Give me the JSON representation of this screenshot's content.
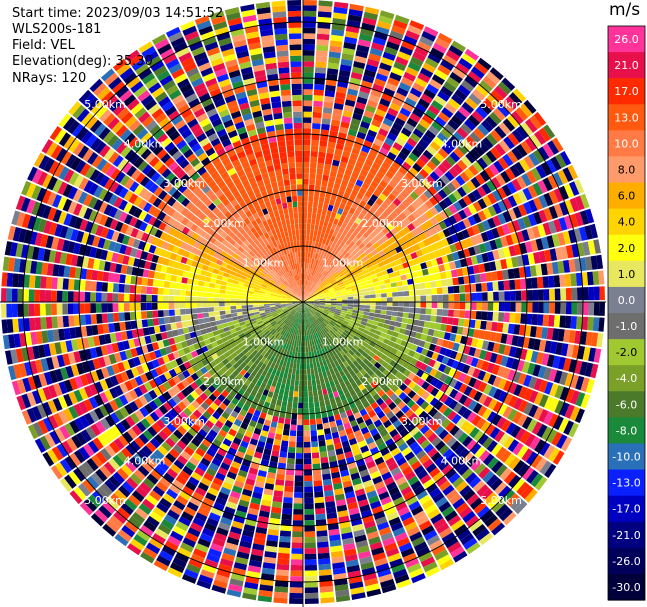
{
  "header": {
    "start_time": "Start time: 2023/09/03 14:51:52",
    "instrument": "WLS200s-181",
    "field": "Field: VEL",
    "elevation": "Elevation(deg): 35.30",
    "nrays": "NRays: 120"
  },
  "colorbar": {
    "unit": "m/s",
    "bins": [
      {
        "label": "26.0",
        "color": "#ff3399"
      },
      {
        "label": "21.0",
        "color": "#e8104a"
      },
      {
        "label": "17.0",
        "color": "#ff2a00"
      },
      {
        "label": "13.0",
        "color": "#ff5a10"
      },
      {
        "label": "10.0",
        "color": "#ff7a45"
      },
      {
        "label": "8.0",
        "color": "#ff9a6a"
      },
      {
        "label": "6.0",
        "color": "#ffae00"
      },
      {
        "label": "4.0",
        "color": "#ffd400"
      },
      {
        "label": "2.0",
        "color": "#ffff10"
      },
      {
        "label": "1.0",
        "color": "#e8e860"
      },
      {
        "label": "0.0",
        "color": "#7a8090"
      },
      {
        "label": "-1.0",
        "color": "#6e6e6e"
      },
      {
        "label": "-2.0",
        "color": "#a0c830"
      },
      {
        "label": "-4.0",
        "color": "#7aa028"
      },
      {
        "label": "-6.0",
        "color": "#4a7a2a"
      },
      {
        "label": "-8.0",
        "color": "#1a8a3a"
      },
      {
        "label": "-10.0",
        "color": "#2a70b8"
      },
      {
        "label": "-13.0",
        "color": "#0a20ff"
      },
      {
        "label": "-17.0",
        "color": "#0000c0"
      },
      {
        "label": "-21.0",
        "color": "#000080"
      },
      {
        "label": "-26.0",
        "color": "#00005a"
      },
      {
        "label": "-30.0",
        "color": "#00003a"
      }
    ]
  },
  "chart_data": {
    "type": "heatmap",
    "projection": "polar PPI",
    "field": "VEL",
    "elevation_deg": 35.3,
    "n_rays": 120,
    "range_rings_km": [
      1,
      2,
      3,
      4,
      5
    ],
    "ring_labels": {
      "r1": "1.00km",
      "r2": "2.00km",
      "r3": "3.00km",
      "r4": "4.00km",
      "r5": "5.00km"
    },
    "max_range_km": 5.4,
    "velocity_pattern": {
      "description": "Coherent wind field within ~3 km: positive (away) velocities to the north, negative (toward) to the south; noisy random values beyond.",
      "north_core_ms": 15,
      "east_ms": 1,
      "west_ms": 3,
      "south_ms": -6
    }
  }
}
